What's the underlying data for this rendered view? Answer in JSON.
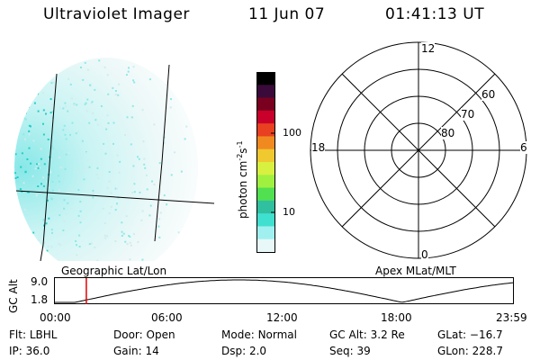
{
  "header": {
    "title": "Ultraviolet Imager",
    "date": "11 Jun 07",
    "time": "01:41:13 UT"
  },
  "colorbar": {
    "label": "photon cm",
    "label_sup1": "-2",
    "label_mid": "s",
    "label_sup2": "-1",
    "ticks": [
      "100",
      "10"
    ],
    "colors": [
      "#000000",
      "#3a0a3a",
      "#7a0020",
      "#c8002a",
      "#e84020",
      "#f08a20",
      "#f0c830",
      "#d8f040",
      "#a0f040",
      "#50e050",
      "#30c0a0",
      "#40e0d0",
      "#a0f0f0",
      "#e8f8f8"
    ]
  },
  "polar": {
    "mlt_labels": [
      "12",
      "18",
      "6",
      "0"
    ],
    "lat_labels": [
      "60",
      "70",
      "80"
    ]
  },
  "timeline": {
    "left_label": "Geographic Lat/Lon",
    "right_label": "Apex MLat/MLT",
    "axis_title": "GC Alt",
    "y_ticks": [
      "9.0",
      "1.8"
    ],
    "x_ticks": [
      "00:00",
      "06:00",
      "12:00",
      "18:00",
      "23:59"
    ],
    "marker_hour": 1.69
  },
  "info": {
    "row1": [
      {
        "k": "Flt:",
        "v": "LBHL"
      },
      {
        "k": "Door:",
        "v": "Open"
      },
      {
        "k": "Mode:",
        "v": "Normal"
      },
      {
        "k": "GC Alt:",
        "v": "3.2 Re"
      },
      {
        "k": "GLat:",
        "v": "−16.7"
      }
    ],
    "row2": [
      {
        "k": "IP:",
        "v": "36.0"
      },
      {
        "k": "Gain:",
        "v": "14"
      },
      {
        "k": "Dsp:",
        "v": "2.0"
      },
      {
        "k": "Seq:",
        "v": "39"
      },
      {
        "k": "GLon:",
        "v": "228.7"
      }
    ]
  }
}
